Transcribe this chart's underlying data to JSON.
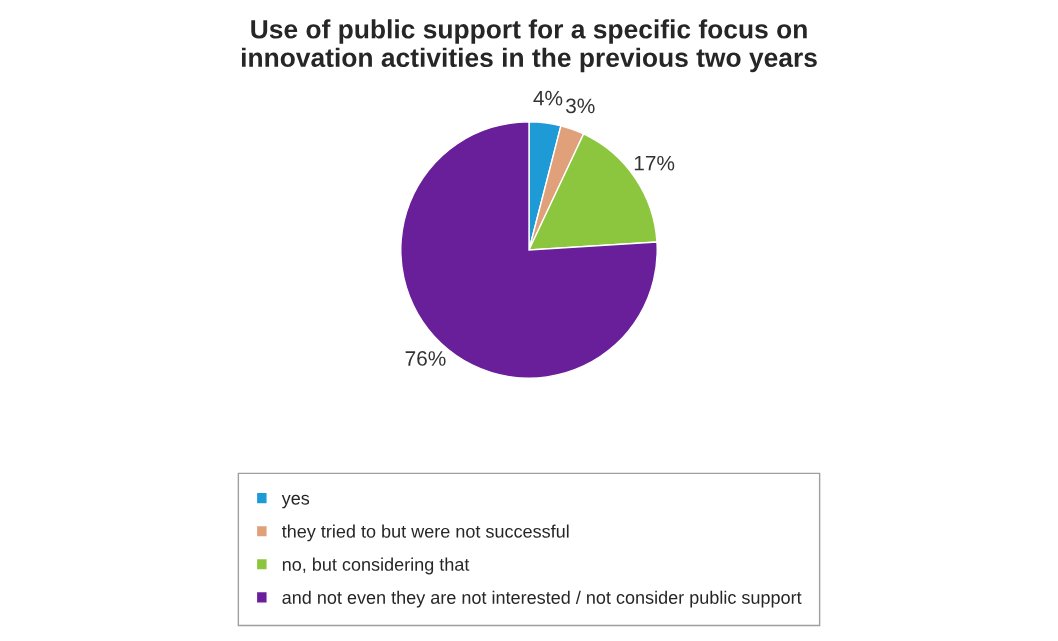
{
  "chart_data": {
    "type": "pie",
    "title": "Use of public support for a specific focus on\ninnovation activities in the previous two years",
    "categories": [
      "yes",
      "they tried to but were not successful",
      "no, but considering that",
      "and not even they are not interested / not consider public support"
    ],
    "values": [
      4,
      3,
      17,
      76
    ],
    "colors": [
      "#1e9bd7",
      "#e0a07a",
      "#8cc63f",
      "#6a1f9a"
    ],
    "value_labels": [
      "4%",
      "3%",
      "17%",
      "76%"
    ],
    "legend": "bottom"
  }
}
